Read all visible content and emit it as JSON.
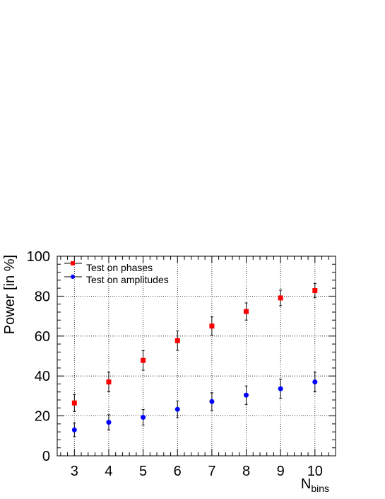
{
  "chart_data": {
    "type": "scatter",
    "xlabel": "N",
    "xlabel_sub": "bins",
    "ylabel": "Power [in %]",
    "xlim": [
      2.5,
      10.6
    ],
    "ylim": [
      0,
      100
    ],
    "x_ticks": [
      3,
      4,
      5,
      6,
      7,
      8,
      9,
      10
    ],
    "y_ticks": [
      0,
      20,
      40,
      60,
      80,
      100
    ],
    "grid": true,
    "legend_position": "top-left",
    "series": [
      {
        "name": "Test on phases",
        "marker": "square",
        "color": "#ff0000",
        "x": [
          3,
          4,
          5,
          6,
          7,
          8,
          9,
          10
        ],
        "y": [
          26.5,
          37,
          47.8,
          57.7,
          65,
          72.3,
          79.1,
          82.8
        ],
        "err": [
          4.3,
          4.9,
          4.9,
          4.9,
          4.6,
          4.3,
          3.9,
          3.6
        ]
      },
      {
        "name": "Test on amplitudes",
        "marker": "circle",
        "color": "#0000ff",
        "x": [
          3,
          4,
          5,
          6,
          7,
          8,
          9,
          10
        ],
        "y": [
          13,
          16.8,
          19.3,
          23.3,
          27.2,
          30.4,
          33.6,
          37
        ],
        "err": [
          3.4,
          3.8,
          3.9,
          4.2,
          4.4,
          4.6,
          4.8,
          4.9
        ]
      }
    ]
  }
}
